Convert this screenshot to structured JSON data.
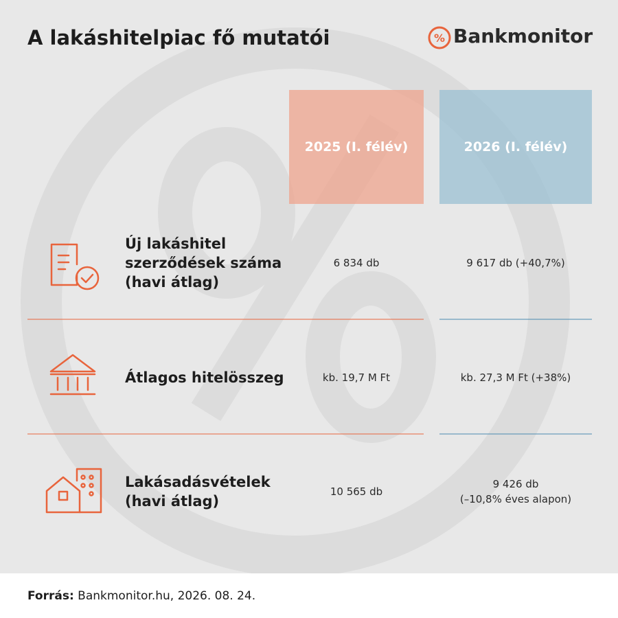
{
  "header": {
    "title": "A lakáshitelpiac fő mutatói",
    "brand": "Bankmonitor"
  },
  "table": {
    "columns": [
      "2025 (I. félév)",
      "2026 (I. félév)"
    ],
    "rows": [
      {
        "label": [
          "Új lakáshitel",
          "szerződések száma",
          "(havi átlag)"
        ],
        "values": [
          [
            "6 834 db"
          ],
          [
            "9 617 db (+40,7%)"
          ]
        ]
      },
      {
        "label": [
          "Átlagos hitelösszeg"
        ],
        "values": [
          [
            "kb. 19,7 M Ft"
          ],
          [
            "kb. 27,3 M Ft (+38%)"
          ]
        ]
      },
      {
        "label": [
          "Lakásadásvételek",
          "(havi átlag)"
        ],
        "values": [
          [
            "10 565 db"
          ],
          [
            "9 426 db",
            "(–10,8% éves alapon)"
          ]
        ]
      }
    ]
  },
  "footer": {
    "source_label": "Forrás:",
    "source": "Bankmonitor.hu, 2026. 08. 24."
  }
}
